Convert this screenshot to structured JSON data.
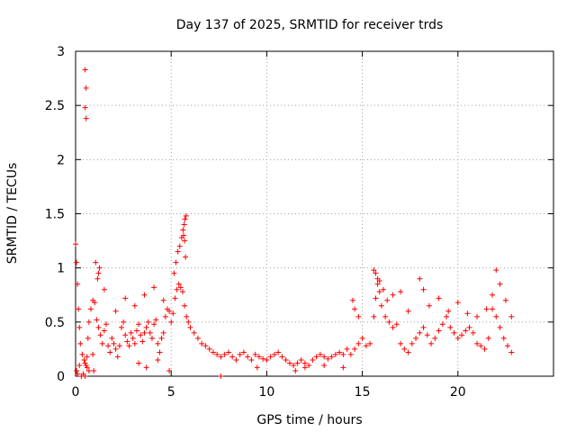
{
  "chart_data": {
    "type": "scatter",
    "title": "Day 137 of 2025, SRMTID for receiver trds",
    "xlabel": "GPS time / hours",
    "ylabel": "SRMTID / TECUs",
    "xlim": [
      0,
      25
    ],
    "ylim": [
      0,
      3
    ],
    "xticks": [
      0,
      5,
      10,
      15,
      20
    ],
    "yticks": [
      0,
      0.5,
      1,
      1.5,
      2,
      2.5,
      3
    ],
    "xtick_labels": [
      "0",
      "5",
      "10",
      "15",
      "20"
    ],
    "ytick_labels": [
      "0",
      "0.5",
      "1",
      "1.5",
      "2",
      "2.5",
      "3"
    ],
    "grid": true,
    "marker": "+",
    "series": [
      {
        "name": "SRMTID",
        "color": "#ff0000",
        "x": [
          0.0,
          0.05,
          0.1,
          0.15,
          0.2,
          0.25,
          0.35,
          0.45,
          0.5,
          0.55,
          0.6,
          0.65,
          0.7,
          0.8,
          0.9,
          1.0,
          1.1,
          1.2,
          1.3,
          1.4,
          1.5,
          1.6,
          1.7,
          1.8,
          1.9,
          2.0,
          2.1,
          2.2,
          2.3,
          2.4,
          2.5,
          2.6,
          2.7,
          2.8,
          2.9,
          3.0,
          3.1,
          3.2,
          3.3,
          3.4,
          3.5,
          3.6,
          3.7,
          3.8,
          3.9,
          4.0,
          4.1,
          4.2,
          4.3,
          4.4,
          4.5,
          4.6,
          4.7,
          4.8,
          4.9,
          5.0,
          5.1,
          5.2,
          5.3,
          5.4,
          5.5,
          5.6,
          5.7,
          5.8,
          5.9,
          6.0,
          6.2,
          6.4,
          6.6,
          6.8,
          7.0,
          7.2,
          7.4,
          7.6,
          7.8,
          8.0,
          8.2,
          8.4,
          8.6,
          8.8,
          9.0,
          9.2,
          9.4,
          9.6,
          9.8,
          10.0,
          10.2,
          10.4,
          10.6,
          10.8,
          11.0,
          11.2,
          11.4,
          11.6,
          11.8,
          12.0,
          12.2,
          12.4,
          12.6,
          12.8,
          13.0,
          13.2,
          13.4,
          13.6,
          13.8,
          14.0,
          14.2,
          14.4,
          14.6,
          14.8,
          15.0,
          15.2,
          15.4,
          15.6,
          15.7,
          15.8,
          15.9,
          16.0,
          16.2,
          16.4,
          16.6,
          16.8,
          17.0,
          17.2,
          17.4,
          17.6,
          17.8,
          18.0,
          18.2,
          18.4,
          18.6,
          18.8,
          19.0,
          19.2,
          19.4,
          19.6,
          19.8,
          20.0,
          20.2,
          20.4,
          20.6,
          20.8,
          21.0,
          21.2,
          21.4,
          21.6,
          21.8,
          22.0,
          22.2,
          22.4,
          22.6,
          22.8,
          0.5,
          0.55,
          0.5,
          0.55,
          0.05,
          0.1,
          0.2,
          0.3,
          0.4,
          0.5,
          0.6,
          0.7,
          1.2,
          1.5,
          2.1,
          2.6,
          3.1,
          3.6,
          4.1,
          4.6,
          5.15,
          5.25,
          5.35,
          5.45,
          5.55,
          5.62,
          5.68,
          5.72,
          5.78,
          5.65,
          5.7,
          5.75,
          14.5,
          14.6,
          14.8,
          15.6,
          15.7,
          15.8,
          15.9,
          16.1,
          16.3,
          16.6,
          17.0,
          17.4,
          18.0,
          18.2,
          18.5,
          19.0,
          19.5,
          20.0,
          20.5,
          21.0,
          21.5,
          21.8,
          22.0,
          22.2,
          22.5,
          22.8,
          7.6,
          9.5,
          11.5,
          12.0,
          13.0,
          14.0,
          1.05,
          1.15,
          1.25,
          0.9,
          0.95,
          3.3,
          3.7,
          4.3,
          4.9
        ],
        "y": [
          1.22,
          1.05,
          0.85,
          0.62,
          0.45,
          0.3,
          0.2,
          0.15,
          0.12,
          0.1,
          0.18,
          0.35,
          0.5,
          0.62,
          0.7,
          0.68,
          0.52,
          0.45,
          0.38,
          0.3,
          0.42,
          0.48,
          0.28,
          0.22,
          0.35,
          0.3,
          0.25,
          0.18,
          0.28,
          0.45,
          0.5,
          0.38,
          0.32,
          0.28,
          0.4,
          0.35,
          0.3,
          0.42,
          0.48,
          0.38,
          0.32,
          0.4,
          0.45,
          0.5,
          0.4,
          0.35,
          0.48,
          0.52,
          0.3,
          0.22,
          0.35,
          0.4,
          0.55,
          0.62,
          0.6,
          0.5,
          0.58,
          0.72,
          0.8,
          0.85,
          0.82,
          0.78,
          0.65,
          0.55,
          0.5,
          0.45,
          0.4,
          0.35,
          0.3,
          0.28,
          0.25,
          0.22,
          0.2,
          0.18,
          0.2,
          0.22,
          0.18,
          0.15,
          0.2,
          0.22,
          0.18,
          0.15,
          0.2,
          0.18,
          0.16,
          0.15,
          0.18,
          0.2,
          0.22,
          0.18,
          0.15,
          0.12,
          0.1,
          0.12,
          0.15,
          0.12,
          0.1,
          0.15,
          0.18,
          0.2,
          0.18,
          0.16,
          0.18,
          0.2,
          0.22,
          0.2,
          0.25,
          0.2,
          0.25,
          0.3,
          0.35,
          0.28,
          0.3,
          0.55,
          0.72,
          0.85,
          0.78,
          0.65,
          0.55,
          0.5,
          0.45,
          0.48,
          0.3,
          0.25,
          0.22,
          0.3,
          0.35,
          0.4,
          0.45,
          0.38,
          0.3,
          0.35,
          0.42,
          0.48,
          0.55,
          0.45,
          0.4,
          0.35,
          0.38,
          0.42,
          0.45,
          0.4,
          0.3,
          0.28,
          0.25,
          0.35,
          0.62,
          0.55,
          0.45,
          0.35,
          0.28,
          0.22,
          2.83,
          2.66,
          2.48,
          2.38,
          0.05,
          0.02,
          0.1,
          0.0,
          0.02,
          0.0,
          0.08,
          0.05,
          0.95,
          0.8,
          0.6,
          0.72,
          0.65,
          0.75,
          0.82,
          0.7,
          0.95,
          1.05,
          1.15,
          1.2,
          1.28,
          1.35,
          1.4,
          1.45,
          1.48,
          1.3,
          1.25,
          1.1,
          0.7,
          0.62,
          0.55,
          0.98,
          0.95,
          0.9,
          0.88,
          0.8,
          0.7,
          0.75,
          0.78,
          0.6,
          0.9,
          0.8,
          0.65,
          0.72,
          0.6,
          0.68,
          0.58,
          0.55,
          0.62,
          0.75,
          0.98,
          0.85,
          0.7,
          0.55,
          0.0,
          0.08,
          0.05,
          0.08,
          0.1,
          0.08,
          1.05,
          0.9,
          1.0,
          0.2,
          0.05,
          0.12,
          0.08,
          0.15,
          0.05
        ]
      }
    ]
  }
}
